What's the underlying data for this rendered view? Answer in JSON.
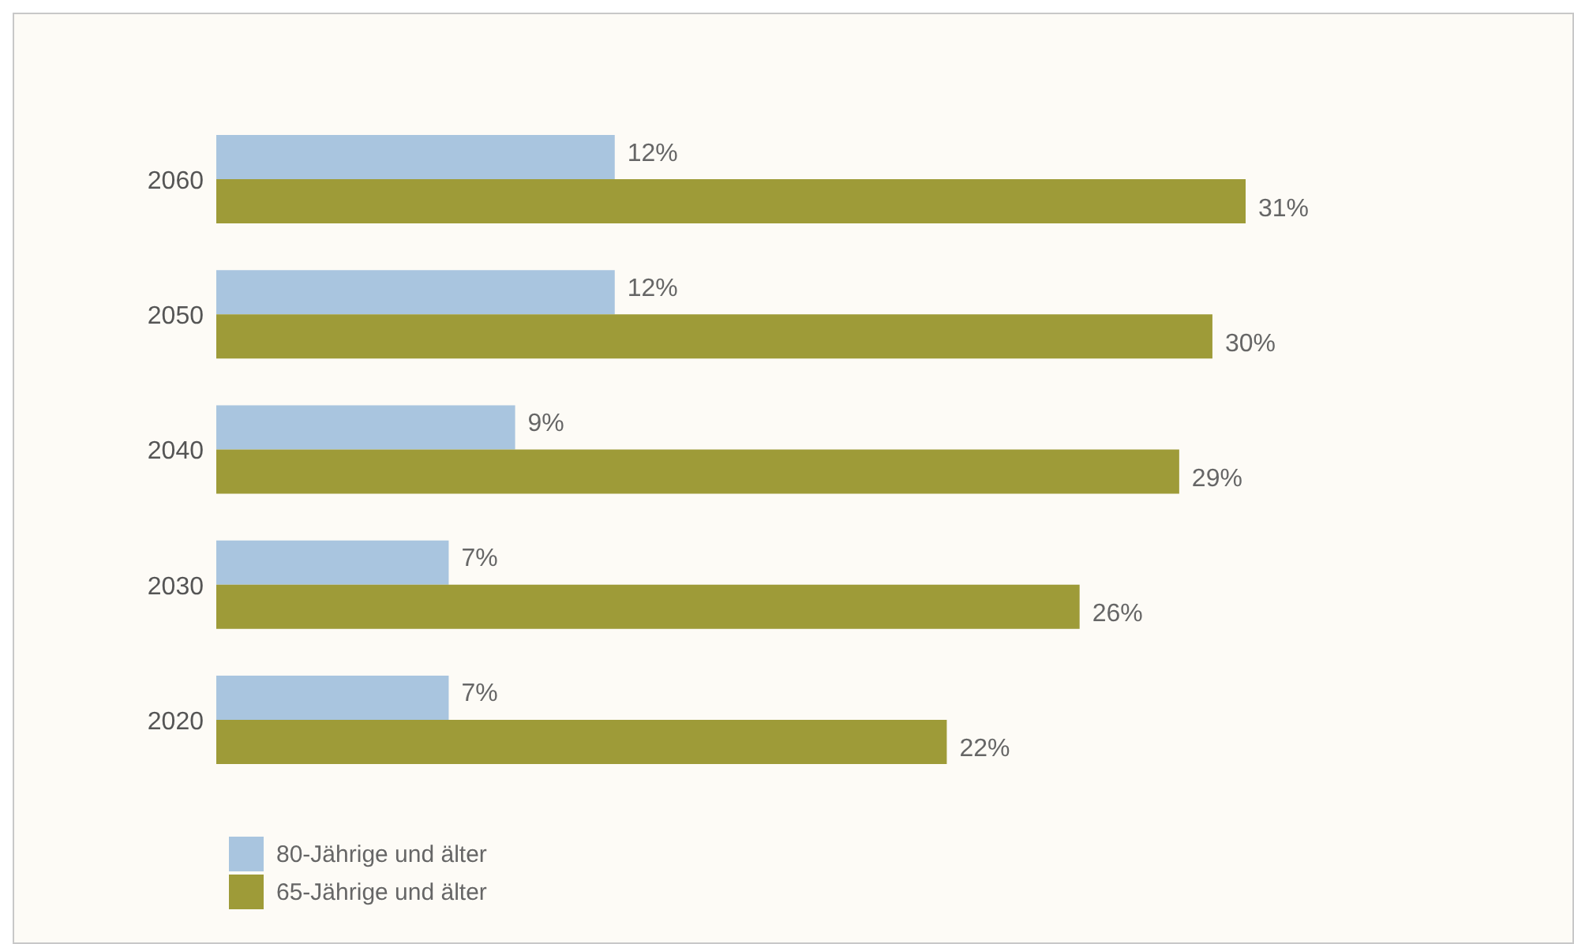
{
  "chart_data": {
    "type": "bar",
    "orientation": "horizontal",
    "categories": [
      "2060",
      "2050",
      "2040",
      "2030",
      "2020"
    ],
    "series": [
      {
        "name": "80-Jährige und älter",
        "color": "#a9c5df",
        "values": [
          12,
          12,
          9,
          7,
          7
        ],
        "value_labels": [
          "12%",
          "12%",
          "9%",
          "7%",
          "7%"
        ]
      },
      {
        "name": "65-Jährige und älter",
        "color": "#9e9b38",
        "values": [
          31,
          30,
          29,
          26,
          22
        ],
        "value_labels": [
          "31%",
          "30%",
          "29%",
          "26%",
          "22%"
        ]
      }
    ],
    "legend": "bottom left"
  }
}
